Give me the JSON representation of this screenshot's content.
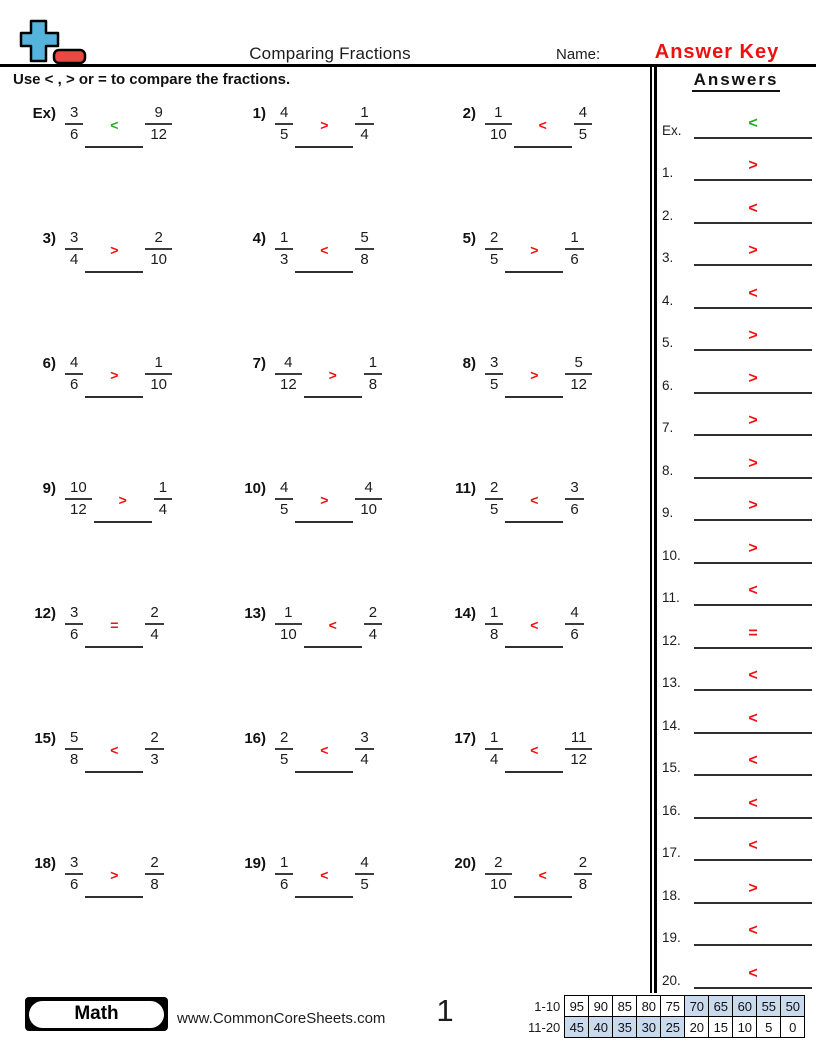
{
  "colors": {
    "answer_red": "#ee1111",
    "example_green": "#23ac23",
    "logo_blue": "#54b4dc",
    "logo_red": "#e84a41",
    "table_shade": "#c9d9ee",
    "line_dark": "#2f2f2f"
  },
  "header": {
    "title": "Comparing Fractions",
    "name_label": "Name:",
    "answer_key_label": "Answer Key",
    "instruction": "Use < , > or = to compare the fractions."
  },
  "problems": [
    {
      "label": "Ex)",
      "num1": "3",
      "den1": "6",
      "symbol": "<",
      "num2": "9",
      "den2": "12",
      "symbol_color": "green"
    },
    {
      "label": "1)",
      "num1": "4",
      "den1": "5",
      "symbol": ">",
      "num2": "1",
      "den2": "4",
      "symbol_color": "red"
    },
    {
      "label": "2)",
      "num1": "1",
      "den1": "10",
      "symbol": "<",
      "num2": "4",
      "den2": "5",
      "symbol_color": "red"
    },
    {
      "label": "3)",
      "num1": "3",
      "den1": "4",
      "symbol": ">",
      "num2": "2",
      "den2": "10",
      "symbol_color": "red"
    },
    {
      "label": "4)",
      "num1": "1",
      "den1": "3",
      "symbol": "<",
      "num2": "5",
      "den2": "8",
      "symbol_color": "red"
    },
    {
      "label": "5)",
      "num1": "2",
      "den1": "5",
      "symbol": ">",
      "num2": "1",
      "den2": "6",
      "symbol_color": "red"
    },
    {
      "label": "6)",
      "num1": "4",
      "den1": "6",
      "symbol": ">",
      "num2": "1",
      "den2": "10",
      "symbol_color": "red"
    },
    {
      "label": "7)",
      "num1": "4",
      "den1": "12",
      "symbol": ">",
      "num2": "1",
      "den2": "8",
      "symbol_color": "red"
    },
    {
      "label": "8)",
      "num1": "3",
      "den1": "5",
      "symbol": ">",
      "num2": "5",
      "den2": "12",
      "symbol_color": "red"
    },
    {
      "label": "9)",
      "num1": "10",
      "den1": "12",
      "symbol": ">",
      "num2": "1",
      "den2": "4",
      "symbol_color": "red"
    },
    {
      "label": "10)",
      "num1": "4",
      "den1": "5",
      "symbol": ">",
      "num2": "4",
      "den2": "10",
      "symbol_color": "red"
    },
    {
      "label": "11)",
      "num1": "2",
      "den1": "5",
      "symbol": "<",
      "num2": "3",
      "den2": "6",
      "symbol_color": "red"
    },
    {
      "label": "12)",
      "num1": "3",
      "den1": "6",
      "symbol": "=",
      "num2": "2",
      "den2": "4",
      "symbol_color": "red"
    },
    {
      "label": "13)",
      "num1": "1",
      "den1": "10",
      "symbol": "<",
      "num2": "2",
      "den2": "4",
      "symbol_color": "red"
    },
    {
      "label": "14)",
      "num1": "1",
      "den1": "8",
      "symbol": "<",
      "num2": "4",
      "den2": "6",
      "symbol_color": "red"
    },
    {
      "label": "15)",
      "num1": "5",
      "den1": "8",
      "symbol": "<",
      "num2": "2",
      "den2": "3",
      "symbol_color": "red"
    },
    {
      "label": "16)",
      "num1": "2",
      "den1": "5",
      "symbol": "<",
      "num2": "3",
      "den2": "4",
      "symbol_color": "red"
    },
    {
      "label": "17)",
      "num1": "1",
      "den1": "4",
      "symbol": "<",
      "num2": "11",
      "den2": "12",
      "symbol_color": "red"
    },
    {
      "label": "18)",
      "num1": "3",
      "den1": "6",
      "symbol": ">",
      "num2": "2",
      "den2": "8",
      "symbol_color": "red"
    },
    {
      "label": "19)",
      "num1": "1",
      "den1": "6",
      "symbol": "<",
      "num2": "4",
      "den2": "5",
      "symbol_color": "red"
    },
    {
      "label": "20)",
      "num1": "2",
      "den1": "10",
      "symbol": "<",
      "num2": "2",
      "den2": "8",
      "symbol_color": "red"
    }
  ],
  "answers_panel": {
    "heading": "Answers",
    "rows": [
      {
        "label": "Ex.",
        "symbol": "<",
        "symbol_color": "green"
      },
      {
        "label": "1.",
        "symbol": ">",
        "symbol_color": "red"
      },
      {
        "label": "2.",
        "symbol": "<",
        "symbol_color": "red"
      },
      {
        "label": "3.",
        "symbol": ">",
        "symbol_color": "red"
      },
      {
        "label": "4.",
        "symbol": "<",
        "symbol_color": "red"
      },
      {
        "label": "5.",
        "symbol": ">",
        "symbol_color": "red"
      },
      {
        "label": "6.",
        "symbol": ">",
        "symbol_color": "red"
      },
      {
        "label": "7.",
        "symbol": ">",
        "symbol_color": "red"
      },
      {
        "label": "8.",
        "symbol": ">",
        "symbol_color": "red"
      },
      {
        "label": "9.",
        "symbol": ">",
        "symbol_color": "red"
      },
      {
        "label": "10.",
        "symbol": ">",
        "symbol_color": "red"
      },
      {
        "label": "11.",
        "symbol": "<",
        "symbol_color": "red"
      },
      {
        "label": "12.",
        "symbol": "=",
        "symbol_color": "red"
      },
      {
        "label": "13.",
        "symbol": "<",
        "symbol_color": "red"
      },
      {
        "label": "14.",
        "symbol": "<",
        "symbol_color": "red"
      },
      {
        "label": "15.",
        "symbol": "<",
        "symbol_color": "red"
      },
      {
        "label": "16.",
        "symbol": "<",
        "symbol_color": "red"
      },
      {
        "label": "17.",
        "symbol": "<",
        "symbol_color": "red"
      },
      {
        "label": "18.",
        "symbol": ">",
        "symbol_color": "red"
      },
      {
        "label": "19.",
        "symbol": "<",
        "symbol_color": "red"
      },
      {
        "label": "20.",
        "symbol": "<",
        "symbol_color": "red"
      }
    ]
  },
  "footer": {
    "subject_badge": "Math",
    "website": "www.CommonCoreSheets.com",
    "page_number": "1",
    "score_table": {
      "rows": [
        {
          "label": "1-10",
          "cells": [
            {
              "value": "95",
              "shaded": false
            },
            {
              "value": "90",
              "shaded": false
            },
            {
              "value": "85",
              "shaded": false
            },
            {
              "value": "80",
              "shaded": false
            },
            {
              "value": "75",
              "shaded": false
            },
            {
              "value": "70",
              "shaded": true
            },
            {
              "value": "65",
              "shaded": true
            },
            {
              "value": "60",
              "shaded": true
            },
            {
              "value": "55",
              "shaded": true
            },
            {
              "value": "50",
              "shaded": true
            }
          ]
        },
        {
          "label": "11-20",
          "cells": [
            {
              "value": "45",
              "shaded": true
            },
            {
              "value": "40",
              "shaded": true
            },
            {
              "value": "35",
              "shaded": true
            },
            {
              "value": "30",
              "shaded": true
            },
            {
              "value": "25",
              "shaded": true
            },
            {
              "value": "20",
              "shaded": false
            },
            {
              "value": "15",
              "shaded": false
            },
            {
              "value": "10",
              "shaded": false
            },
            {
              "value": "5",
              "shaded": false
            },
            {
              "value": "0",
              "shaded": false
            }
          ]
        }
      ]
    }
  }
}
